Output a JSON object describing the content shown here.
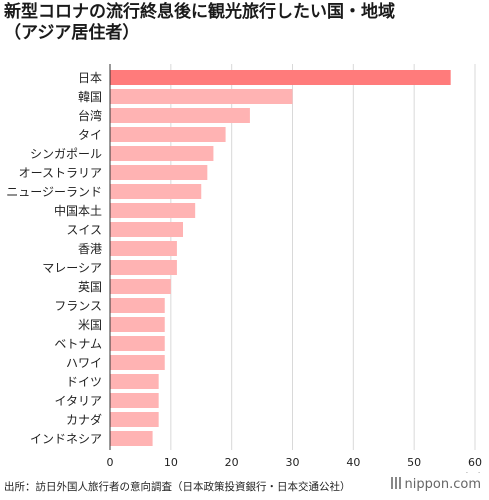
{
  "title_lines": [
    "新型コロナの流行終息後に観光旅行したい国・地域",
    "（アジア居住者）"
  ],
  "source": "出所：訪日外国人旅行者の意向調査（日本政策投資銀行・日本交通公社）",
  "logo": "nippon.com",
  "chart_data": {
    "type": "bar",
    "orientation": "horizontal",
    "categories": [
      "日本",
      "韓国",
      "台湾",
      "タイ",
      "シンガポール",
      "オーストラリア",
      "ニュージーランド",
      "中国本土",
      "スイス",
      "香港",
      "マレーシア",
      "英国",
      "フランス",
      "米国",
      "ベトナム",
      "ハワイ",
      "ドイツ",
      "イタリア",
      "カナダ",
      "インドネシア"
    ],
    "values": [
      56,
      30,
      23,
      19,
      17,
      16,
      15,
      14,
      12,
      11,
      11,
      10,
      9,
      9,
      9,
      9,
      8,
      8,
      8,
      7
    ],
    "xlim": [
      0,
      60
    ],
    "xticks": [
      "0",
      "10",
      "20",
      "30",
      "40",
      "50",
      "60"
    ],
    "xunit": "(%)",
    "grid": true,
    "colors": {
      "highlight": "#ff7b7b",
      "bar": "#ffb3b3",
      "grid": "#d9d9d9",
      "axis": "#333333"
    }
  }
}
